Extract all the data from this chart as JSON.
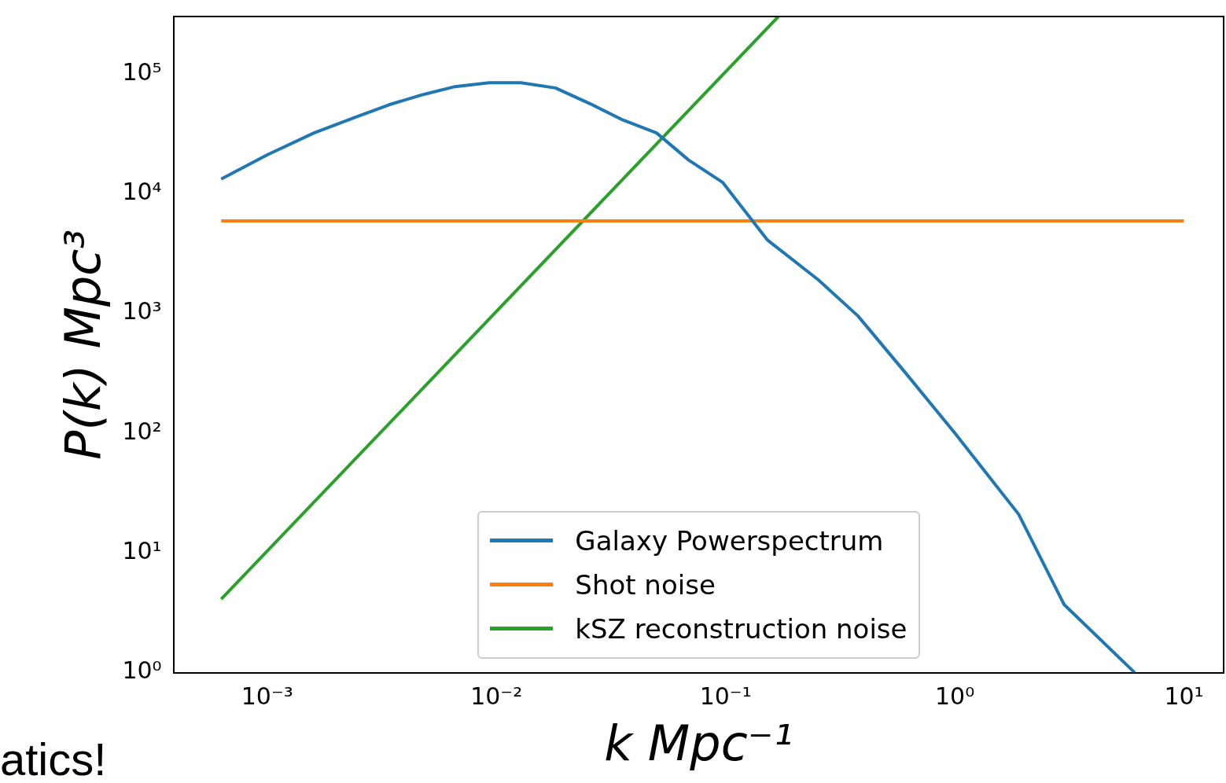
{
  "chart_data": {
    "type": "line",
    "xlabel": "k Mpc⁻¹",
    "ylabel": "P(k) Mpc³",
    "log": "xy",
    "grid": false,
    "legend": "bottom",
    "marker": "none",
    "line_style": "solid",
    "xlim": [
      0.00039,
      14.9
    ],
    "ylim": [
      1,
      300000
    ],
    "xticks": [
      {
        "value": 0.001,
        "label": "10⁻³"
      },
      {
        "value": 0.01,
        "label": "10⁻²"
      },
      {
        "value": 0.1,
        "label": "10⁻¹"
      },
      {
        "value": 1,
        "label": "10⁰"
      },
      {
        "value": 10,
        "label": "10¹"
      }
    ],
    "yticks": [
      {
        "value": 1,
        "label": "10⁰"
      },
      {
        "value": 10,
        "label": "10¹"
      },
      {
        "value": 100,
        "label": "10²"
      },
      {
        "value": 1000,
        "label": "10³"
      },
      {
        "value": 10000,
        "label": "10⁴"
      },
      {
        "value": 100000,
        "label": "10⁵"
      }
    ],
    "series": [
      {
        "name": "Galaxy Powerspectrum",
        "color": "#1f77b4",
        "x": [
          0.00063,
          0.001,
          0.0016,
          0.0024,
          0.0034,
          0.0048,
          0.0066,
          0.0093,
          0.0128,
          0.0181,
          0.0257,
          0.0357,
          0.05,
          0.069,
          0.097,
          0.152,
          0.254,
          0.378,
          0.608,
          1,
          1.9,
          3.0,
          6.1
        ],
        "values": [
          13200,
          21000,
          32000,
          43000,
          55000,
          67000,
          78000,
          84000,
          84000,
          76000,
          56000,
          41000,
          32000,
          19000,
          12400,
          4100,
          1900,
          950,
          320,
          100,
          21,
          3.7,
          1
        ]
      },
      {
        "name": "Shot noise",
        "color": "#ff7f0e",
        "x": [
          0.00063,
          10
        ],
        "values": [
          5900,
          5900
        ]
      },
      {
        "name": "kSZ reconstruction noise",
        "color": "#2ca02c",
        "x": [
          0.00063,
          0.17
        ],
        "values": [
          4.1,
          300000
        ]
      }
    ],
    "annotations": [
      "atics!"
    ]
  }
}
